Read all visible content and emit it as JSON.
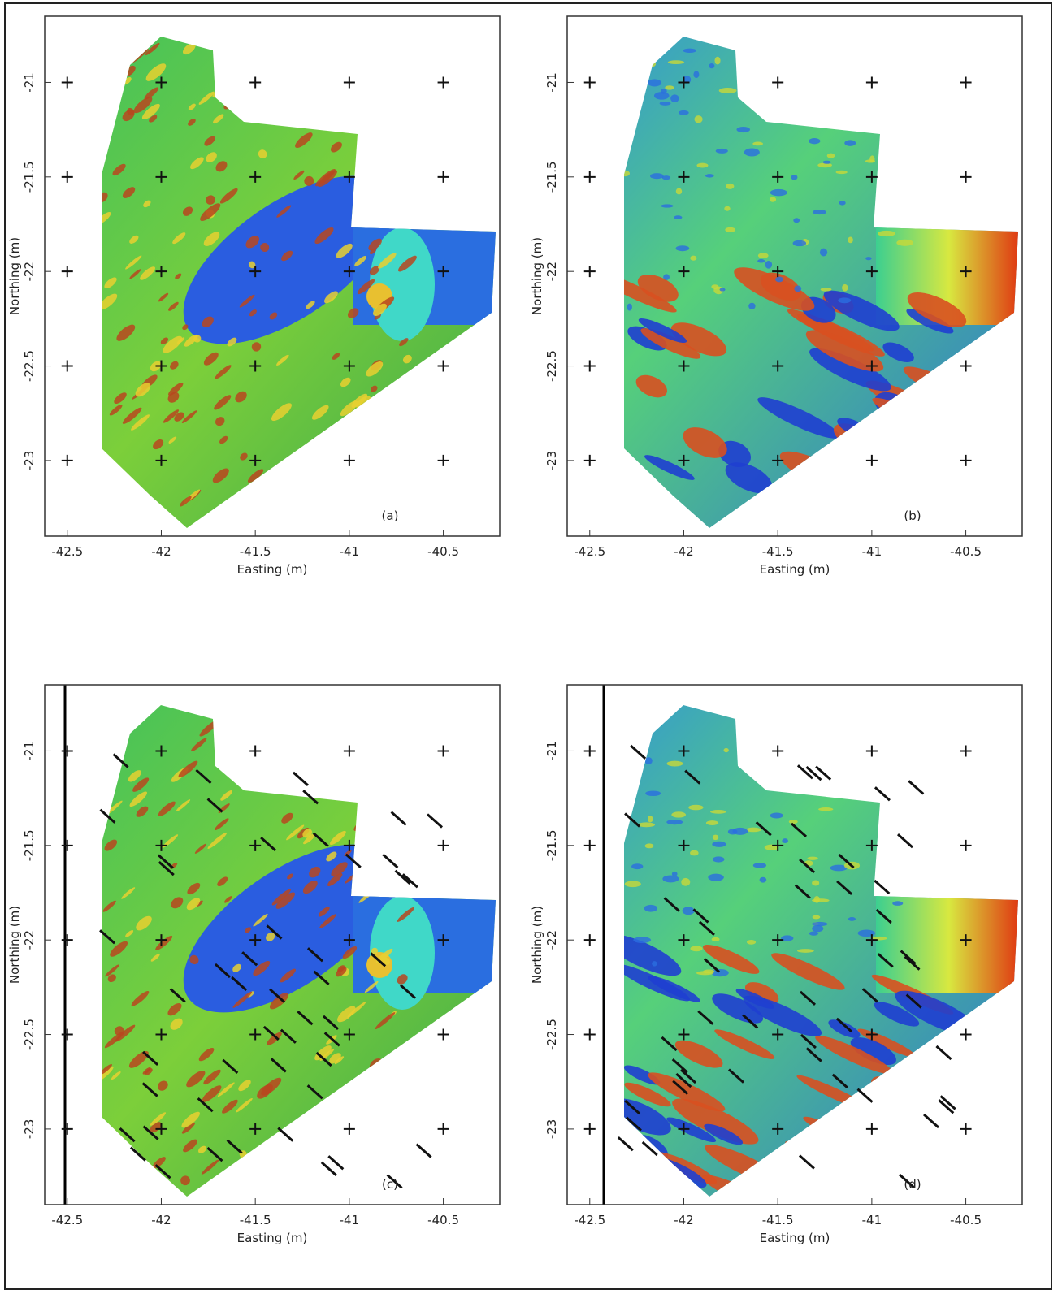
{
  "chart_data": [
    {
      "type": "map",
      "label": "(a)",
      "xlabel": "Easting (m)",
      "ylabel": "Northing (m)",
      "xlim": [
        -42.62,
        -40.2
      ],
      "ylim": [
        -23.4,
        -20.65
      ],
      "xticks": [
        -42.5,
        -42,
        -41.5,
        -41,
        -40.5
      ],
      "yticks": [
        -21,
        -21.5,
        -22,
        -22.5,
        -23
      ],
      "grid": true
    },
    {
      "type": "map",
      "label": "(b)",
      "xlabel": "Easting (m)",
      "ylabel": "Northing (m)",
      "xlim": [
        -42.62,
        -40.2
      ],
      "ylim": [
        -23.4,
        -20.65
      ],
      "xticks": [
        -42.5,
        -42,
        -41.5,
        -41,
        -40.5
      ],
      "yticks": [
        -21,
        -21.5,
        -22,
        -22.5,
        -23
      ],
      "grid": true
    },
    {
      "type": "map",
      "label": "(c)",
      "xlabel": "Easting (m)",
      "ylabel": "Northing (m)",
      "xlim": [
        -42.62,
        -40.2
      ],
      "ylim": [
        -23.4,
        -20.65
      ],
      "xticks": [
        -42.5,
        -42,
        -41.5,
        -41,
        -40.5
      ],
      "yticks": [
        -21,
        -21.5,
        -22,
        -22.5,
        -23
      ],
      "grid": true
    },
    {
      "type": "map",
      "label": "(d)",
      "xlabel": "Easting (m)",
      "ylabel": "Northing (m)",
      "xlim": [
        -42.62,
        -40.2
      ],
      "ylim": [
        -23.4,
        -20.65
      ],
      "xticks": [
        -42.5,
        -42,
        -41.5,
        -41,
        -40.5
      ],
      "yticks": [
        -21,
        -21.5,
        -22,
        -22.5,
        -23
      ],
      "grid": true
    }
  ]
}
